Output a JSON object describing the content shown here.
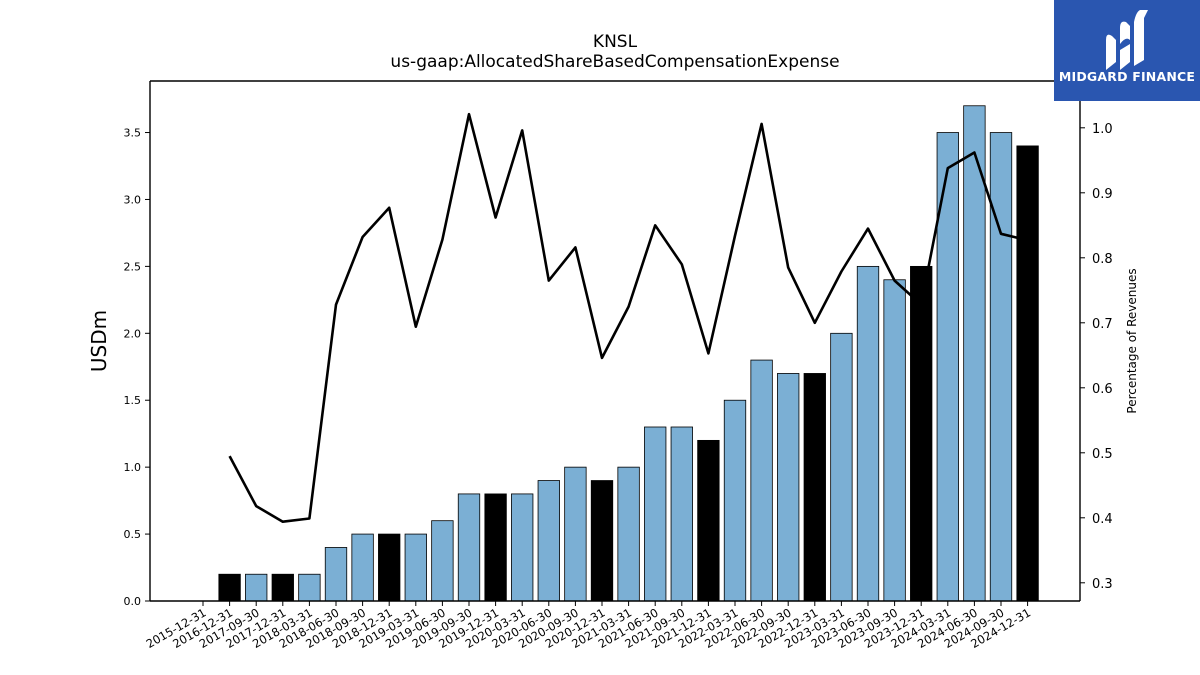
{
  "chart_data": {
    "type": "bar",
    "title": "KNSL",
    "subtitle": "us-gaap:AllocatedShareBasedCompensationExpense",
    "ylabel": "USDm",
    "y2label": "Percentage of Revenues",
    "ylim": [
      0,
      3.885
    ],
    "y2lim": [
      0.272,
      1.072
    ],
    "yticks": [
      "0.0",
      "0.5",
      "1.0",
      "1.5",
      "2.0",
      "2.5",
      "3.0",
      "3.5"
    ],
    "y2ticks": [
      "0.3",
      "0.4",
      "0.5",
      "0.6",
      "0.7",
      "0.8",
      "0.9",
      "1.0"
    ],
    "categories": [
      "2015-12-31",
      "2016-12-31",
      "2017-09-30",
      "2017-12-31",
      "2018-03-31",
      "2018-06-30",
      "2018-09-30",
      "2018-12-31",
      "2019-03-31",
      "2019-06-30",
      "2019-09-30",
      "2019-12-31",
      "2020-03-31",
      "2020-06-30",
      "2020-09-30",
      "2020-12-31",
      "2021-03-31",
      "2021-06-30",
      "2021-09-30",
      "2021-12-31",
      "2022-03-31",
      "2022-06-30",
      "2022-09-30",
      "2022-12-31",
      "2023-03-31",
      "2023-06-30",
      "2023-09-30",
      "2023-12-31",
      "2024-03-31",
      "2024-06-30",
      "2024-09-30",
      "2024-12-31"
    ],
    "series": [
      {
        "kind": "bar",
        "values": [
          null,
          0.2,
          0.2,
          0.2,
          0.2,
          0.4,
          0.5,
          0.5,
          0.5,
          0.6,
          0.8,
          0.8,
          0.8,
          0.9,
          1.0,
          0.9,
          1.0,
          1.3,
          1.3,
          1.2,
          1.5,
          1.8,
          1.7,
          1.7,
          2.0,
          2.5,
          2.4,
          2.5,
          3.5,
          3.7,
          3.5,
          3.4
        ],
        "annual": [
          false,
          true,
          false,
          true,
          false,
          false,
          false,
          true,
          false,
          false,
          false,
          true,
          false,
          false,
          false,
          true,
          false,
          false,
          false,
          true,
          false,
          false,
          false,
          true,
          false,
          false,
          false,
          true,
          false,
          false,
          false,
          true
        ]
      },
      {
        "kind": "line",
        "axis": "right",
        "values": [
          null,
          0.495,
          0.418,
          0.394,
          0.399,
          0.728,
          0.832,
          0.877,
          0.694,
          0.828,
          1.021,
          0.862,
          0.996,
          0.765,
          0.816,
          0.646,
          0.725,
          0.85,
          0.79,
          0.653,
          0.834,
          1.006,
          0.785,
          0.7,
          0.779,
          0.845,
          0.765,
          0.728,
          0.938,
          0.962,
          0.837,
          0.827
        ]
      }
    ],
    "colors": {
      "bar_quarterly": "#7bafd4",
      "bar_annual": "#000000",
      "line": "#000000"
    },
    "grid": false,
    "legend": "none"
  },
  "logo": {
    "text": "MIDGARD FINANCE",
    "icon": "midgard-m-icon",
    "background": "#2a56b0"
  }
}
